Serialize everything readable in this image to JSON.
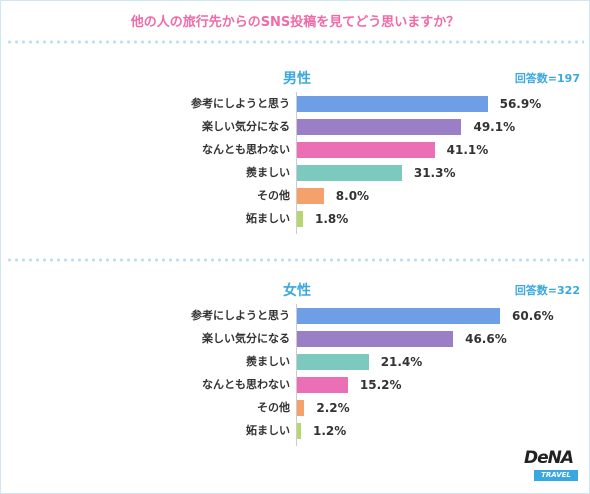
{
  "title": "他の人の旅行先からのSNS投稿を見てどう思いますか？",
  "colors": {
    "blue": "#6d9ee6",
    "purple": "#9b7fc6",
    "pink": "#ea6fb4",
    "teal": "#7cc9c0",
    "orange": "#f5a16b",
    "green": "#b6d672"
  },
  "logo": {
    "main": "DeNA",
    "sub": "TRAVEL"
  },
  "chart_data": [
    {
      "type": "bar",
      "title": "男性",
      "respondents": "回答数=197",
      "categories": [
        "参考にしようと思う",
        "楽しい気分になる",
        "なんとも思わない",
        "羨ましい",
        "その他",
        "妬ましい"
      ],
      "values": [
        56.9,
        49.1,
        41.1,
        31.3,
        8.0,
        1.8
      ],
      "labels": [
        "56.9%",
        "49.1%",
        "41.1%",
        "31.3%",
        "8.0%",
        "1.8%"
      ],
      "bar_colors": [
        "#6d9ee6",
        "#9b7fc6",
        "#ea6fb4",
        "#7cc9c0",
        "#f5a16b",
        "#b6d672"
      ]
    },
    {
      "type": "bar",
      "title": "女性",
      "respondents": "回答数=322",
      "categories": [
        "参考にしようと思う",
        "楽しい気分になる",
        "羨ましい",
        "なんとも思わない",
        "その他",
        "妬ましい"
      ],
      "values": [
        60.6,
        46.6,
        21.4,
        15.2,
        2.2,
        1.2
      ],
      "labels": [
        "60.6%",
        "46.6%",
        "21.4%",
        "15.2%",
        "2.2%",
        "1.2%"
      ],
      "bar_colors": [
        "#6d9ee6",
        "#9b7fc6",
        "#7cc9c0",
        "#ea6fb4",
        "#f5a16b",
        "#b6d672"
      ]
    }
  ]
}
